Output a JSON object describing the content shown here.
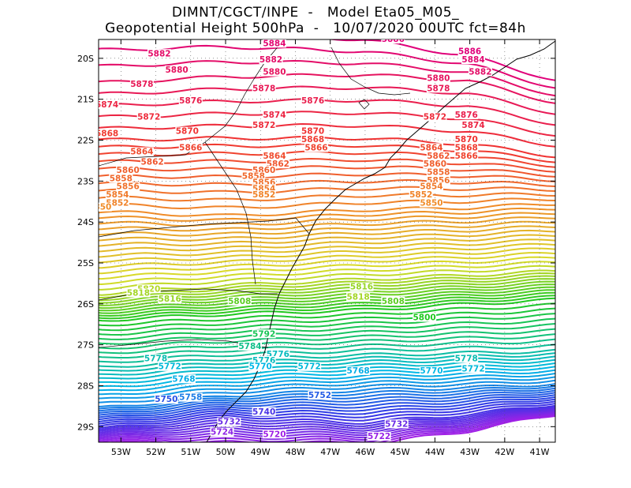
{
  "title": {
    "line1": "DIMNT/CGCT/INPE  -   Model Eta05_M05_",
    "line2": "Geopotential Height 500hPa  -   10/07/2020 00UTC fct=84h"
  },
  "axes": {
    "lon_labels": [
      "53W",
      "52W",
      "51W",
      "50W",
      "49W",
      "48W",
      "47W",
      "46W",
      "45W",
      "44W",
      "43W",
      "42W",
      "41W"
    ],
    "lat_labels": [
      "20S",
      "21S",
      "22S",
      "23S",
      "24S",
      "25S",
      "26S",
      "27S",
      "28S",
      "29S"
    ]
  },
  "contours": {
    "min": 5720,
    "max": 5886,
    "step": 2,
    "colors": {
      "high": "#e0007a",
      "red": "#f03232",
      "orange": "#f08c28",
      "yellow": "#d8dc28",
      "green": "#20c820",
      "cyan": "#00b8e6",
      "blue": "#3238e6",
      "purple": "#a020e6"
    }
  },
  "contour_labels": [
    {
      "text": "5886",
      "lon": -45.2,
      "lat": -19.6
    },
    {
      "text": "5884",
      "lon": -48.6,
      "lat": -19.7
    },
    {
      "text": "5886",
      "lon": -43.0,
      "lat": -19.9
    },
    {
      "text": "5884",
      "lon": -42.9,
      "lat": -20.1
    },
    {
      "text": "5882",
      "lon": -51.9,
      "lat": -19.95
    },
    {
      "text": "5882",
      "lon": -48.7,
      "lat": -20.1
    },
    {
      "text": "5882",
      "lon": -42.7,
      "lat": -20.4
    },
    {
      "text": "5880",
      "lon": -51.4,
      "lat": -20.35
    },
    {
      "text": "5880",
      "lon": -48.6,
      "lat": -20.4
    },
    {
      "text": "5880",
      "lon": -43.9,
      "lat": -20.55
    },
    {
      "text": "5878",
      "lon": -52.4,
      "lat": -20.7
    },
    {
      "text": "5878",
      "lon": -48.9,
      "lat": -20.8
    },
    {
      "text": "5878",
      "lon": -43.9,
      "lat": -20.8
    },
    {
      "text": "5876",
      "lon": -51.0,
      "lat": -21.1
    },
    {
      "text": "5876",
      "lon": -47.5,
      "lat": -21.1
    },
    {
      "text": "5876",
      "lon": -43.1,
      "lat": -21.45
    },
    {
      "text": "5874",
      "lon": -53.4,
      "lat": -21.2
    },
    {
      "text": "5874",
      "lon": -48.6,
      "lat": -21.45
    },
    {
      "text": "5874",
      "lon": -42.9,
      "lat": -21.7
    },
    {
      "text": "5872",
      "lon": -52.2,
      "lat": -21.5
    },
    {
      "text": "5872",
      "lon": -48.9,
      "lat": -21.7
    },
    {
      "text": "5872",
      "lon": -44.0,
      "lat": -21.5
    },
    {
      "text": "5870",
      "lon": -51.1,
      "lat": -21.85
    },
    {
      "text": "5870",
      "lon": -47.5,
      "lat": -21.85
    },
    {
      "text": "5870",
      "lon": -43.1,
      "lat": -22.05
    },
    {
      "text": "5868",
      "lon": -53.4,
      "lat": -21.9
    },
    {
      "text": "5868",
      "lon": -47.5,
      "lat": -22.05
    },
    {
      "text": "5868",
      "lon": -43.1,
      "lat": -22.25
    },
    {
      "text": "5866",
      "lon": -51.0,
      "lat": -22.25
    },
    {
      "text": "5866",
      "lon": -47.4,
      "lat": -22.25
    },
    {
      "text": "5866",
      "lon": -43.1,
      "lat": -22.45
    },
    {
      "text": "5864",
      "lon": -52.4,
      "lat": -22.35
    },
    {
      "text": "5864",
      "lon": -48.6,
      "lat": -22.45
    },
    {
      "text": "5864",
      "lon": -44.1,
      "lat": -22.25
    },
    {
      "text": "5862",
      "lon": -52.1,
      "lat": -22.6
    },
    {
      "text": "5862",
      "lon": -48.5,
      "lat": -22.65
    },
    {
      "text": "5862",
      "lon": -43.9,
      "lat": -22.45
    },
    {
      "text": "5860",
      "lon": -52.8,
      "lat": -22.8
    },
    {
      "text": "5860",
      "lon": -48.9,
      "lat": -22.8
    },
    {
      "text": "5860",
      "lon": -44.0,
      "lat": -22.65
    },
    {
      "text": "5858",
      "lon": -53.0,
      "lat": -23.0
    },
    {
      "text": "5858",
      "lon": -49.2,
      "lat": -22.95
    },
    {
      "text": "5858",
      "lon": -43.9,
      "lat": -22.85
    },
    {
      "text": "5856",
      "lon": -52.8,
      "lat": -23.2
    },
    {
      "text": "5856",
      "lon": -48.9,
      "lat": -23.1
    },
    {
      "text": "5856",
      "lon": -43.9,
      "lat": -23.05
    },
    {
      "text": "5854",
      "lon": -53.1,
      "lat": -23.4
    },
    {
      "text": "5854",
      "lon": -48.9,
      "lat": -23.25
    },
    {
      "text": "5854",
      "lon": -44.1,
      "lat": -23.2
    },
    {
      "text": "5852",
      "lon": -53.1,
      "lat": -23.6
    },
    {
      "text": "5852",
      "lon": -48.9,
      "lat": -23.4
    },
    {
      "text": "5852",
      "lon": -44.4,
      "lat": -23.4
    },
    {
      "text": "5850",
      "lon": -53.6,
      "lat": -23.7
    },
    {
      "text": "5850",
      "lon": -44.1,
      "lat": -23.6
    },
    {
      "text": "5820",
      "lon": -52.2,
      "lat": -25.7
    },
    {
      "text": "5818",
      "lon": -52.5,
      "lat": -25.8
    },
    {
      "text": "5816",
      "lon": -51.6,
      "lat": -25.95
    },
    {
      "text": "5816",
      "lon": -46.1,
      "lat": -25.65
    },
    {
      "text": "5818",
      "lon": -46.2,
      "lat": -25.9
    },
    {
      "text": "5808",
      "lon": -49.6,
      "lat": -26.0
    },
    {
      "text": "5808",
      "lon": -45.2,
      "lat": -26.0
    },
    {
      "text": "5800",
      "lon": -44.3,
      "lat": -26.4
    },
    {
      "text": "5792",
      "lon": -48.9,
      "lat": -26.8
    },
    {
      "text": "5784",
      "lon": -49.3,
      "lat": -27.1
    },
    {
      "text": "5778",
      "lon": -52.0,
      "lat": -27.4
    },
    {
      "text": "5776",
      "lon": -48.5,
      "lat": -27.3
    },
    {
      "text": "5776",
      "lon": -48.9,
      "lat": -27.45
    },
    {
      "text": "5778",
      "lon": -43.1,
      "lat": -27.4
    },
    {
      "text": "5772",
      "lon": -51.6,
      "lat": -27.6
    },
    {
      "text": "5770",
      "lon": -49.0,
      "lat": -27.6
    },
    {
      "text": "5772",
      "lon": -47.6,
      "lat": -27.6
    },
    {
      "text": "5770",
      "lon": -44.1,
      "lat": -27.7
    },
    {
      "text": "5772",
      "lon": -42.9,
      "lat": -27.65
    },
    {
      "text": "5768",
      "lon": -51.2,
      "lat": -27.9
    },
    {
      "text": "5768",
      "lon": -46.2,
      "lat": -27.7
    },
    {
      "text": "5752",
      "lon": -47.3,
      "lat": -28.3
    },
    {
      "text": "5758",
      "lon": -51.0,
      "lat": -28.35
    },
    {
      "text": "5750",
      "lon": -51.7,
      "lat": -28.4
    },
    {
      "text": "5740",
      "lon": -48.9,
      "lat": -28.7
    },
    {
      "text": "5732",
      "lon": -49.9,
      "lat": -28.95
    },
    {
      "text": "5732",
      "lon": -45.1,
      "lat": -29.0
    },
    {
      "text": "5720",
      "lon": -48.6,
      "lat": -29.25
    },
    {
      "text": "5722",
      "lon": -45.6,
      "lat": -29.3
    },
    {
      "text": "5724",
      "lon": -50.1,
      "lat": -29.2
    }
  ]
}
